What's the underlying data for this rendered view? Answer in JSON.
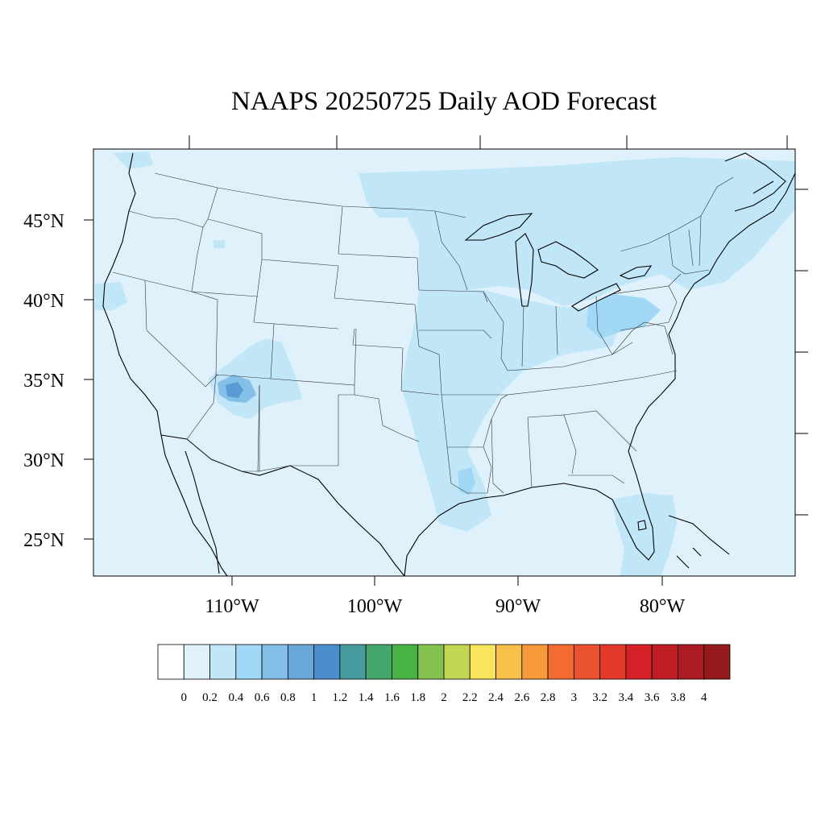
{
  "title": "NAAPS 20250725 Daily AOD Forecast",
  "map": {
    "region": "Contiguous United States",
    "field": "Aerosol Optical Depth",
    "background_color": "#dff2fc",
    "lat_ticks": [
      "45°N",
      "40°N",
      "35°N",
      "30°N",
      "25°N"
    ],
    "lon_ticks": [
      "110°W",
      "100°W",
      "90°W",
      "80°W"
    ],
    "hotspot_colors": [
      "#c0e6f8",
      "#9fd8f5",
      "#84bfe7",
      "#5b9bd5"
    ]
  },
  "colorbar": {
    "labels": [
      "0",
      "0.2",
      "0.4",
      "0.6",
      "0.8",
      "1",
      "1.2",
      "1.4",
      "1.6",
      "1.8",
      "2",
      "2.2",
      "2.4",
      "2.6",
      "2.8",
      "3",
      "3.2",
      "3.4",
      "3.6",
      "3.8",
      "4"
    ],
    "colors": [
      "#ffffff",
      "#dff2fc",
      "#c0e6f8",
      "#a1d8f5",
      "#84bfe7",
      "#69a7da",
      "#4a8ecb",
      "#469c9f",
      "#45a66e",
      "#48b244",
      "#84c24f",
      "#c3d653",
      "#f8e55b",
      "#f8bf4b",
      "#f69a3c",
      "#f36b2e",
      "#ea5230",
      "#e2392b",
      "#d42128",
      "#bf1e24",
      "#ac1b21",
      "#941a1d"
    ]
  }
}
